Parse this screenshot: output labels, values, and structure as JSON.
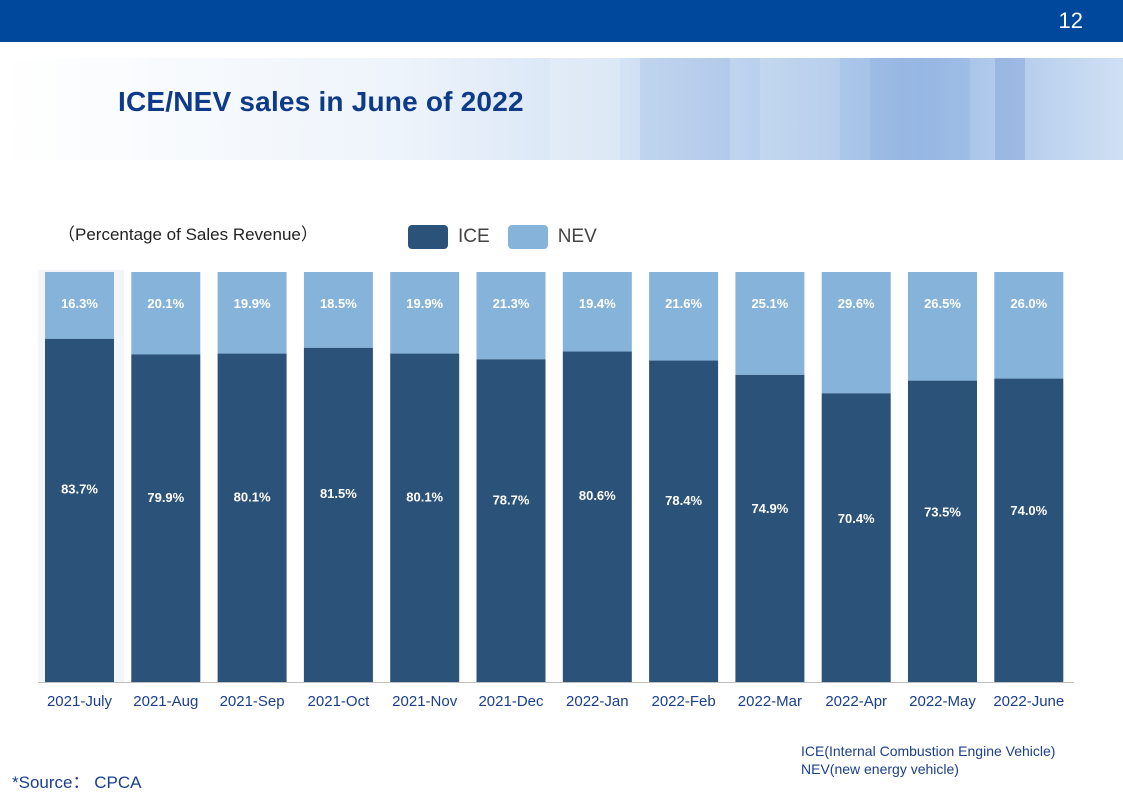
{
  "page": {
    "number": "12",
    "title": "ICE/NEV sales in June of 2022",
    "source": "*Source： CPCA",
    "footnotes": [
      "ICE(Internal Combustion Engine Vehicle)",
      "NEV(new energy vehicle)"
    ]
  },
  "colors": {
    "header": "#00489b",
    "ice": "#2b5278",
    "nev": "#86b3d9",
    "title": "#0e3a8a"
  },
  "chart_data": {
    "type": "bar",
    "stacked": true,
    "subtitle": "（Percentage of Sales Revenue）",
    "legend_position": "top",
    "categories": [
      "2021-July",
      "2021-Aug",
      "2021-Sep",
      "2021-Oct",
      "2021-Nov",
      "2021-Dec",
      "2022-Jan",
      "2022-Feb",
      "2022-Mar",
      "2022-Apr",
      "2022-May",
      "2022-June"
    ],
    "series": [
      {
        "name": "ICE",
        "values": [
          83.7,
          79.9,
          80.1,
          81.5,
          80.1,
          78.7,
          80.6,
          78.4,
          74.9,
          70.4,
          73.5,
          74.0
        ],
        "labels": [
          "83.7%",
          "79.9%",
          "80.1%",
          "81.5%",
          "80.1%",
          "78.7%",
          "80.6%",
          "78.4%",
          "74.9%",
          "70.4%",
          "73.5%",
          "74.0%"
        ]
      },
      {
        "name": "NEV",
        "values": [
          16.3,
          20.1,
          19.9,
          18.5,
          19.9,
          21.3,
          19.4,
          21.6,
          25.1,
          29.6,
          26.5,
          26.0
        ],
        "labels": [
          "16.3%",
          "20.1%",
          "19.9%",
          "18.5%",
          "19.9%",
          "21.3%",
          "19.4%",
          "21.6%",
          "25.1%",
          "29.6%",
          "26.5%",
          "26.0%"
        ]
      }
    ],
    "ylim": [
      0,
      100
    ],
    "grid": false
  }
}
